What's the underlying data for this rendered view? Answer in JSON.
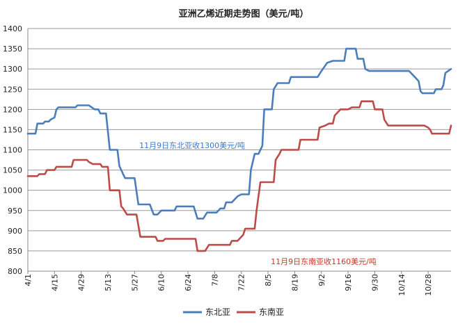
{
  "chart_data": {
    "type": "line",
    "title": "亚洲乙烯近期走势图（美元/吨）",
    "xlabel": "",
    "ylabel": "",
    "ylim": [
      800,
      1400
    ],
    "yticks": [
      800,
      850,
      900,
      950,
      1000,
      1050,
      1100,
      1150,
      1200,
      1250,
      1300,
      1350,
      1400
    ],
    "x_domain": [
      "4/1",
      "11/9"
    ],
    "xtick_labels": [
      "4/1",
      "4/15",
      "4/29",
      "5/13",
      "5/27",
      "6/10",
      "6/24",
      "7/8",
      "7/22",
      "8/5",
      "8/19",
      "9/2",
      "9/16",
      "9/30",
      "10/14",
      "10/28"
    ],
    "grid": "horizontal",
    "legend_position": "bottom",
    "annotations": [
      {
        "text": "11月9日东北亚收1300美元/吨",
        "series": "东北亚"
      },
      {
        "text": "11月9日东南亚收1160美元/吨",
        "series": "东南亚"
      }
    ],
    "series": [
      {
        "name": "东北亚",
        "color": "#4a7ebb",
        "points": [
          [
            "4/1",
            1140
          ],
          [
            "4/5",
            1140
          ],
          [
            "4/6",
            1165
          ],
          [
            "4/9",
            1165
          ],
          [
            "4/10",
            1170
          ],
          [
            "4/12",
            1170
          ],
          [
            "4/13",
            1175
          ],
          [
            "4/15",
            1180
          ],
          [
            "4/16",
            1200
          ],
          [
            "4/17",
            1205
          ],
          [
            "4/26",
            1205
          ],
          [
            "4/27",
            1210
          ],
          [
            "5/3",
            1210
          ],
          [
            "5/6",
            1200
          ],
          [
            "5/8",
            1200
          ],
          [
            "5/9",
            1190
          ],
          [
            "5/12",
            1190
          ],
          [
            "5/14",
            1100
          ],
          [
            "5/18",
            1100
          ],
          [
            "5/19",
            1060
          ],
          [
            "5/20",
            1050
          ],
          [
            "5/21",
            1040
          ],
          [
            "5/22",
            1030
          ],
          [
            "5/27",
            1030
          ],
          [
            "5/29",
            965
          ],
          [
            "6/4",
            965
          ],
          [
            "6/6",
            940
          ],
          [
            "6/8",
            940
          ],
          [
            "6/10",
            950
          ],
          [
            "6/17",
            950
          ],
          [
            "6/18",
            960
          ],
          [
            "6/27",
            960
          ],
          [
            "6/29",
            930
          ],
          [
            "7/2",
            930
          ],
          [
            "7/4",
            945
          ],
          [
            "7/9",
            945
          ],
          [
            "7/11",
            955
          ],
          [
            "7/13",
            955
          ],
          [
            "7/14",
            970
          ],
          [
            "7/17",
            970
          ],
          [
            "7/18",
            975
          ],
          [
            "7/20",
            985
          ],
          [
            "7/22",
            990
          ],
          [
            "7/26",
            990
          ],
          [
            "7/27",
            1050
          ],
          [
            "7/29",
            1090
          ],
          [
            "7/31",
            1090
          ],
          [
            "8/2",
            1110
          ],
          [
            "8/3",
            1200
          ],
          [
            "8/7",
            1200
          ],
          [
            "8/8",
            1250
          ],
          [
            "8/10",
            1265
          ],
          [
            "8/16",
            1265
          ],
          [
            "8/17",
            1280
          ],
          [
            "8/31",
            1280
          ],
          [
            "9/2",
            1295
          ],
          [
            "9/5",
            1315
          ],
          [
            "9/8",
            1320
          ],
          [
            "9/14",
            1320
          ],
          [
            "9/15",
            1350
          ],
          [
            "9/20",
            1350
          ],
          [
            "9/21",
            1325
          ],
          [
            "9/24",
            1325
          ],
          [
            "9/25",
            1300
          ],
          [
            "9/27",
            1295
          ],
          [
            "10/18",
            1295
          ],
          [
            "10/21",
            1280
          ],
          [
            "10/23",
            1270
          ],
          [
            "10/24",
            1245
          ],
          [
            "10/25",
            1240
          ],
          [
            "10/31",
            1240
          ],
          [
            "11/1",
            1250
          ],
          [
            "11/4",
            1250
          ],
          [
            "11/5",
            1260
          ],
          [
            "11/6",
            1290
          ],
          [
            "11/9",
            1300
          ]
        ]
      },
      {
        "name": "东南亚",
        "color": "#be4b48",
        "points": [
          [
            "4/1",
            1035
          ],
          [
            "4/6",
            1035
          ],
          [
            "4/7",
            1040
          ],
          [
            "4/10",
            1040
          ],
          [
            "4/11",
            1050
          ],
          [
            "4/15",
            1050
          ],
          [
            "4/16",
            1058
          ],
          [
            "4/24",
            1058
          ],
          [
            "4/25",
            1075
          ],
          [
            "5/2",
            1075
          ],
          [
            "5/3",
            1070
          ],
          [
            "5/5",
            1065
          ],
          [
            "5/9",
            1065
          ],
          [
            "5/10",
            1058
          ],
          [
            "5/13",
            1058
          ],
          [
            "5/14",
            1000
          ],
          [
            "5/19",
            1000
          ],
          [
            "5/20",
            960
          ],
          [
            "5/21",
            955
          ],
          [
            "5/23",
            940
          ],
          [
            "5/28",
            940
          ],
          [
            "5/30",
            885
          ],
          [
            "6/7",
            885
          ],
          [
            "6/8",
            875
          ],
          [
            "6/11",
            875
          ],
          [
            "6/12",
            880
          ],
          [
            "6/28",
            880
          ],
          [
            "6/29",
            850
          ],
          [
            "7/3",
            850
          ],
          [
            "7/5",
            865
          ],
          [
            "7/16",
            865
          ],
          [
            "7/17",
            875
          ],
          [
            "7/20",
            875
          ],
          [
            "7/21",
            880
          ],
          [
            "7/23",
            890
          ],
          [
            "7/24",
            905
          ],
          [
            "7/29",
            905
          ],
          [
            "7/30",
            950
          ],
          [
            "8/1",
            1020
          ],
          [
            "8/8",
            1020
          ],
          [
            "8/9",
            1075
          ],
          [
            "8/11",
            1090
          ],
          [
            "8/12",
            1100
          ],
          [
            "8/21",
            1100
          ],
          [
            "8/22",
            1125
          ],
          [
            "8/31",
            1125
          ],
          [
            "9/1",
            1155
          ],
          [
            "9/4",
            1160
          ],
          [
            "9/6",
            1165
          ],
          [
            "9/8",
            1165
          ],
          [
            "9/9",
            1185
          ],
          [
            "9/12",
            1200
          ],
          [
            "9/16",
            1200
          ],
          [
            "9/18",
            1205
          ],
          [
            "9/22",
            1205
          ],
          [
            "9/23",
            1220
          ],
          [
            "9/29",
            1220
          ],
          [
            "9/30",
            1200
          ],
          [
            "10/4",
            1200
          ],
          [
            "10/5",
            1175
          ],
          [
            "10/7",
            1160
          ],
          [
            "10/26",
            1160
          ],
          [
            "10/28",
            1155
          ],
          [
            "10/29",
            1150
          ],
          [
            "10/30",
            1140
          ],
          [
            "11/8",
            1140
          ],
          [
            "11/9",
            1160
          ]
        ]
      }
    ]
  }
}
